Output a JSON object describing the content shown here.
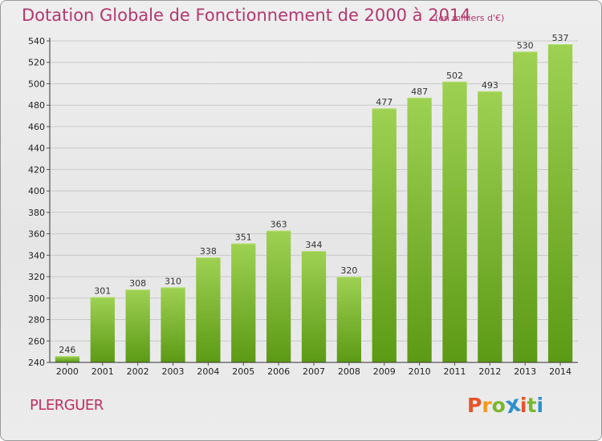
{
  "title": "Dotation Globale de Fonctionnement de 2000 à 2014",
  "unit_note": "(en milliers d'€)",
  "commune": "PLERGUER",
  "brand": "Proxiti",
  "colors": {
    "title": "#b3386e",
    "bar_top": "#9ed152",
    "bar_bottom": "#5c9a15",
    "brand_letters": [
      "#e8522a",
      "#f39a1c",
      "#79b82a",
      "#2c8fd1",
      "#e8522a",
      "#79b82a",
      "#2c8fd1"
    ]
  },
  "chart_data": {
    "type": "bar",
    "categories": [
      "2000",
      "2001",
      "2002",
      "2003",
      "2004",
      "2005",
      "2006",
      "2007",
      "2008",
      "2009",
      "2010",
      "2011",
      "2012",
      "2013",
      "2014"
    ],
    "values": [
      246,
      301,
      308,
      310,
      338,
      351,
      363,
      344,
      320,
      477,
      487,
      502,
      493,
      530,
      537
    ],
    "ylim": [
      240,
      540
    ],
    "yticks": [
      240,
      260,
      280,
      300,
      320,
      340,
      360,
      380,
      400,
      420,
      440,
      460,
      480,
      500,
      520,
      540
    ],
    "grid": true,
    "title": "Dotation Globale de Fonctionnement de 2000 à 2014",
    "xlabel": "",
    "ylabel": ""
  }
}
